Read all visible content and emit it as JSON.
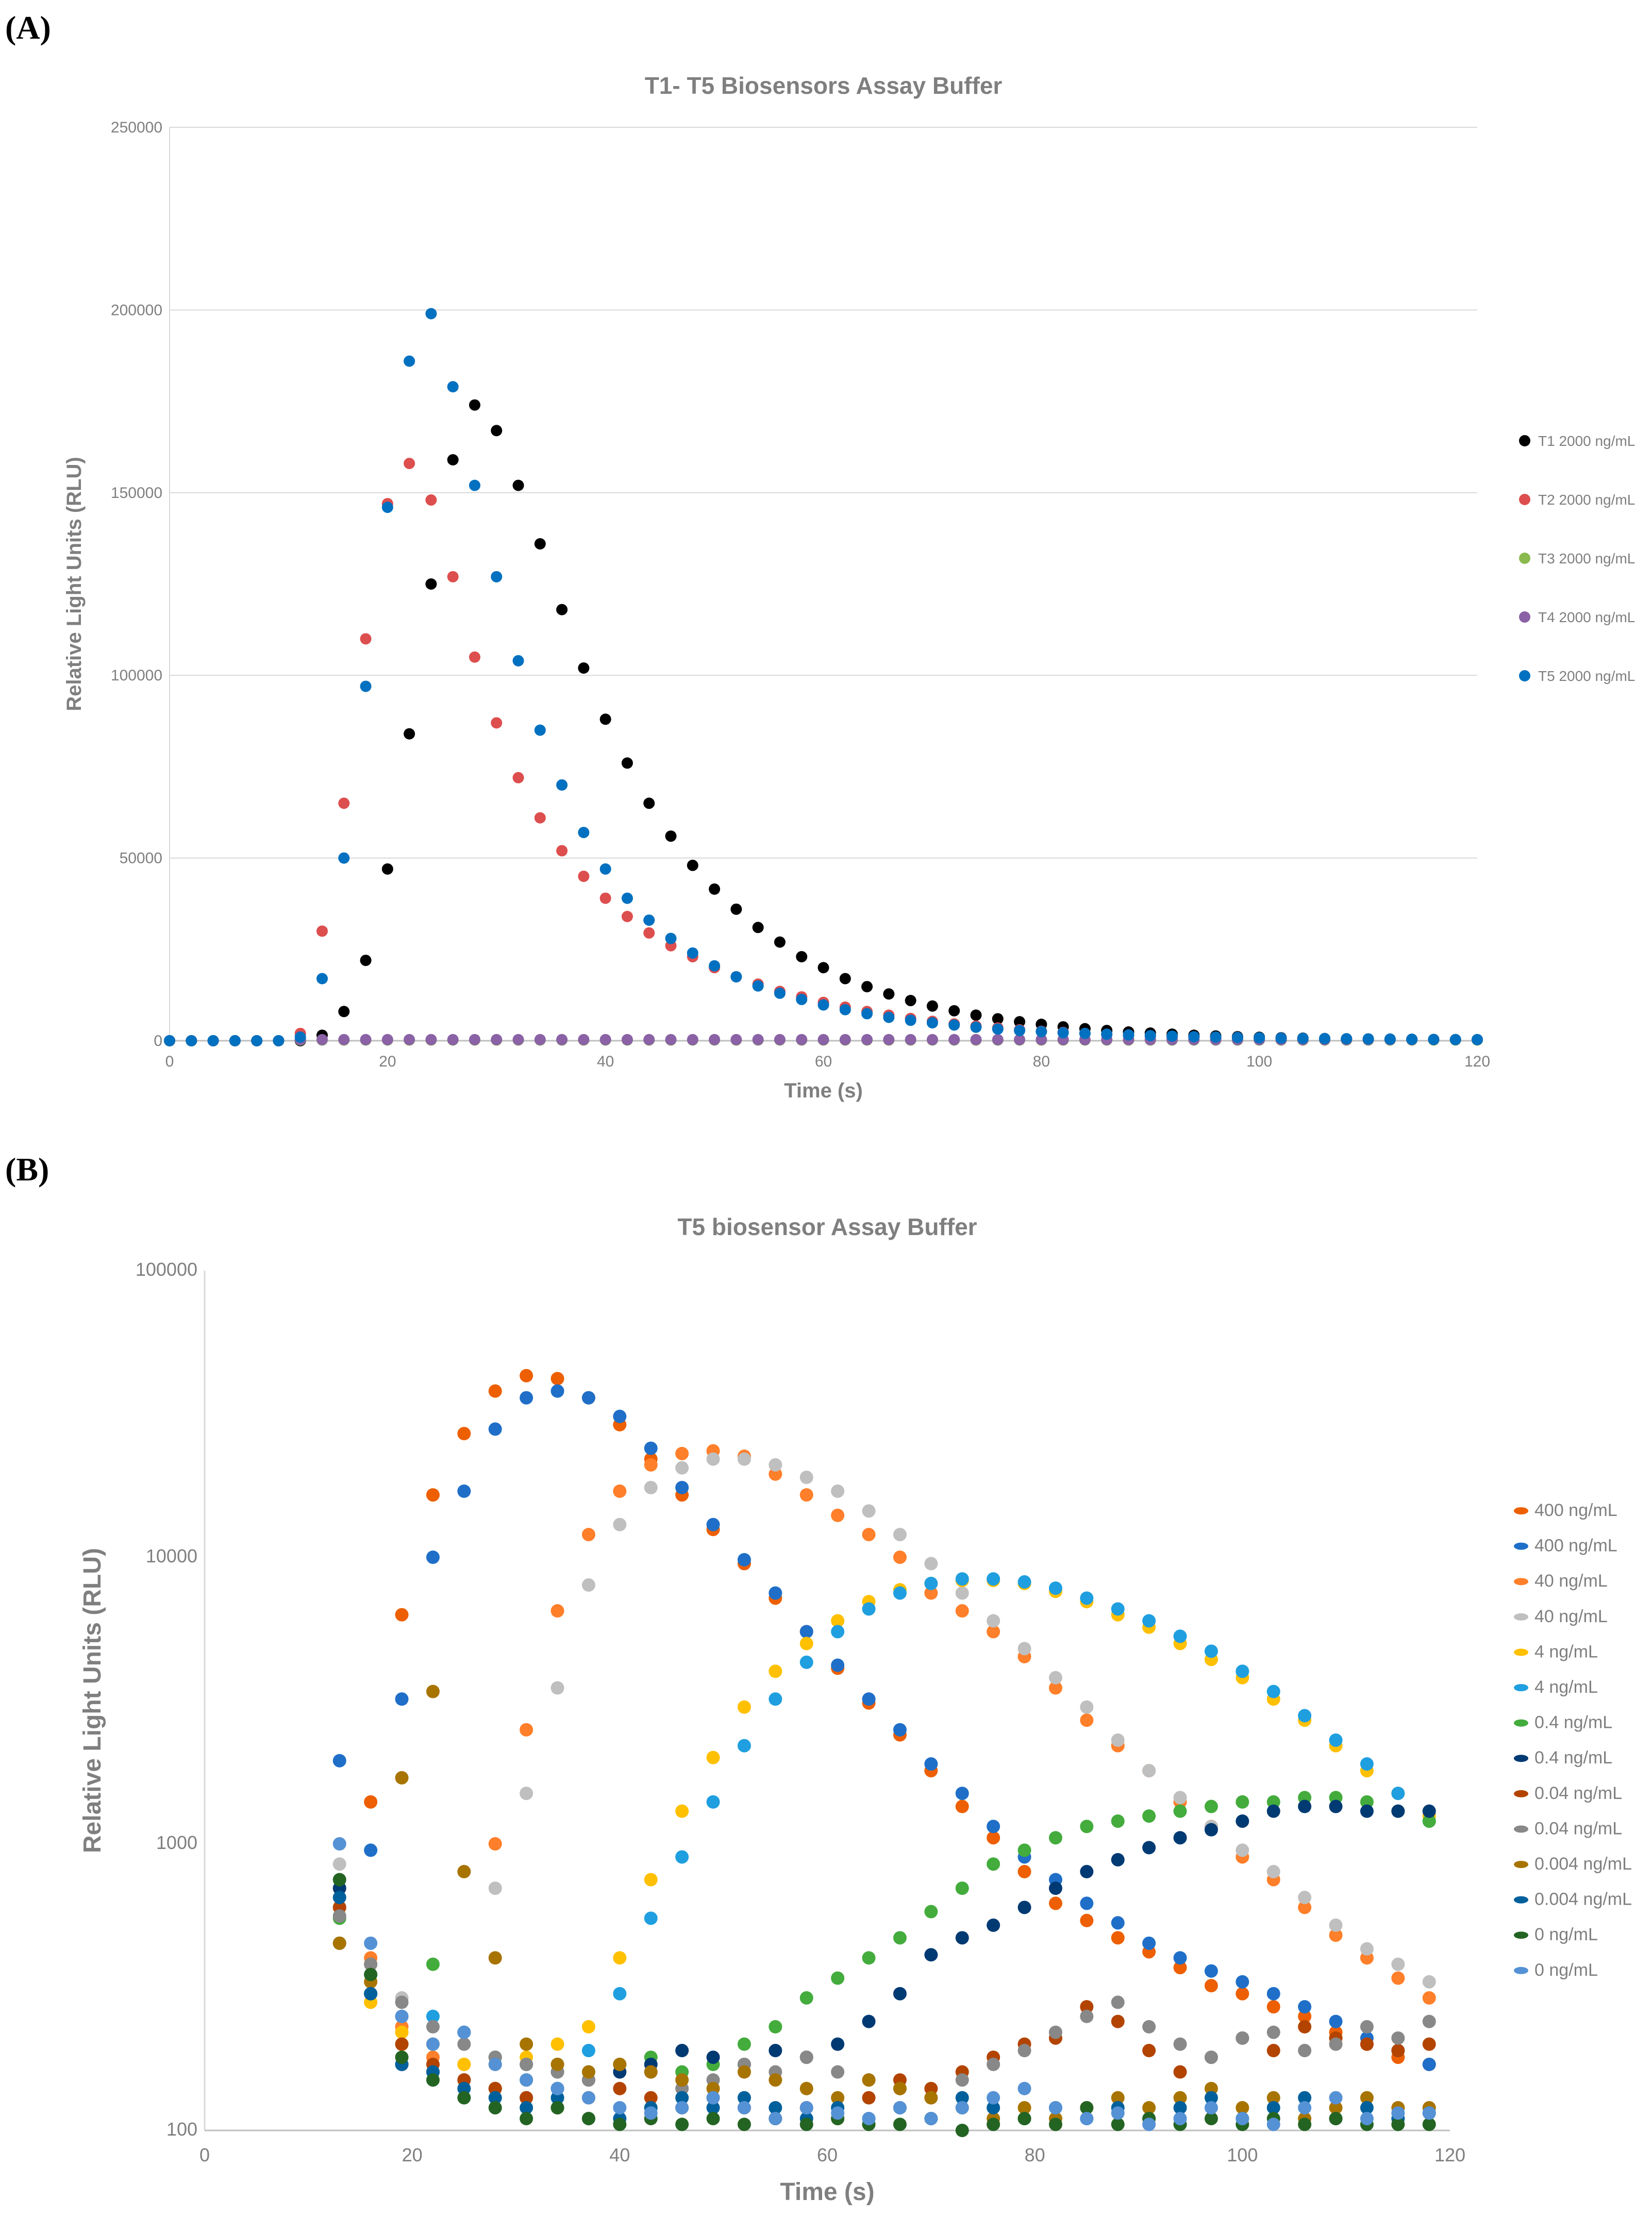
{
  "panels": {
    "a": "(A)",
    "b": "(B)"
  },
  "chart_data": [
    {
      "type": "scatter",
      "title": "T1- T5 Biosensors Assay Buffer",
      "xlabel": "Time (s)",
      "ylabel": "Relative Light Units (RLU)",
      "xlim": [
        0,
        120
      ],
      "ylim": [
        0,
        250000
      ],
      "xticks": [
        0,
        20,
        40,
        60,
        80,
        100,
        120
      ],
      "yticks": [
        0,
        50000,
        100000,
        150000,
        200000,
        250000
      ],
      "grid": "horizontal",
      "legend": "right",
      "yscale": "linear",
      "x": [
        0,
        2,
        4,
        6,
        8,
        10,
        12,
        14,
        16,
        18,
        20,
        22,
        24,
        26,
        28,
        30,
        32,
        34,
        36,
        38,
        40,
        42,
        44,
        46,
        48,
        50,
        52,
        54,
        56,
        58,
        60,
        62,
        64,
        66,
        68,
        70,
        72,
        74,
        76,
        78,
        80,
        82,
        84,
        86,
        88,
        90,
        92,
        94,
        96,
        98,
        100,
        102,
        104,
        106,
        108,
        110,
        112,
        114,
        116,
        118,
        120
      ],
      "series": [
        {
          "name": "T1 2000 ng/mL",
          "color": "#000000",
          "values": [
            0,
            0,
            0,
            0,
            0,
            0,
            0,
            1500,
            8000,
            22000,
            47000,
            84000,
            125000,
            159000,
            174000,
            167000,
            152000,
            136000,
            118000,
            102000,
            88000,
            76000,
            65000,
            56000,
            48000,
            41500,
            36000,
            31000,
            27000,
            23000,
            20000,
            17000,
            14800,
            12800,
            11000,
            9500,
            8200,
            7000,
            6000,
            5200,
            4500,
            3800,
            3300,
            2800,
            2400,
            2100,
            1800,
            1500,
            1300,
            1100,
            950,
            800,
            700,
            600,
            500,
            450,
            400,
            350,
            300,
            280,
            250
          ]
        },
        {
          "name": "T2 2000 ng/mL",
          "color": "#DD4E4E",
          "values": [
            0,
            0,
            0,
            0,
            0,
            0,
            2000,
            30000,
            65000,
            110000,
            147000,
            158000,
            148000,
            127000,
            105000,
            87000,
            72000,
            61000,
            52000,
            45000,
            39000,
            34000,
            29500,
            26000,
            23000,
            20000,
            17500,
            15500,
            13500,
            12000,
            10500,
            9200,
            8000,
            7000,
            6100,
            5300,
            4600,
            4000,
            3500,
            3000,
            2600,
            2300,
            2000,
            1700,
            1500,
            1300,
            1100,
            1000,
            900,
            800,
            700,
            650,
            600,
            550,
            500,
            450,
            420,
            400,
            350,
            320,
            300
          ]
        },
        {
          "name": "T3 2000 ng/mL",
          "color": "#8AB94E",
          "values": [
            0,
            0,
            0,
            0,
            0,
            0,
            200,
            200,
            200,
            200,
            200,
            200,
            200,
            200,
            200,
            200,
            200,
            200,
            200,
            200,
            200,
            200,
            200,
            200,
            200,
            200,
            200,
            200,
            200,
            200,
            200,
            200,
            200,
            200,
            200,
            200,
            200,
            200,
            200,
            200,
            200,
            200,
            200,
            200,
            200,
            200,
            200,
            200,
            200,
            200,
            200,
            200,
            200,
            200,
            200,
            200,
            200,
            200,
            200,
            200,
            200
          ]
        },
        {
          "name": "T4 2000 ng/mL",
          "color": "#8A62A5",
          "values": [
            0,
            0,
            0,
            0,
            0,
            0,
            300,
            300,
            300,
            300,
            300,
            300,
            300,
            300,
            300,
            300,
            300,
            300,
            300,
            300,
            300,
            300,
            300,
            300,
            300,
            300,
            300,
            300,
            300,
            300,
            300,
            300,
            300,
            300,
            300,
            300,
            300,
            300,
            300,
            300,
            300,
            300,
            300,
            300,
            300,
            300,
            300,
            300,
            300,
            300,
            300,
            300,
            300,
            300,
            300,
            300,
            300,
            300,
            300,
            300,
            300
          ]
        },
        {
          "name": "T5 2000 ng/mL",
          "color": "#0070C0",
          "values": [
            0,
            0,
            0,
            0,
            0,
            0,
            1000,
            17000,
            50000,
            97000,
            146000,
            186000,
            199000,
            179000,
            152000,
            127000,
            104000,
            85000,
            70000,
            57000,
            47000,
            39000,
            33000,
            28000,
            24000,
            20500,
            17500,
            15000,
            13000,
            11300,
            9800,
            8500,
            7400,
            6400,
            5600,
            4900,
            4300,
            3700,
            3200,
            2800,
            2500,
            2200,
            2000,
            1800,
            1600,
            1400,
            1250,
            1100,
            1000,
            900,
            800,
            700,
            650,
            600,
            550,
            500,
            450,
            400,
            350,
            320,
            300
          ]
        }
      ]
    },
    {
      "type": "scatter",
      "title": "T5 biosensor Assay Buffer",
      "xlabel": "Time (s)",
      "ylabel": "Relative Light Units (RLU)",
      "xlim": [
        0,
        120
      ],
      "ylim": [
        100,
        100000
      ],
      "xticks": [
        0,
        20,
        40,
        60,
        80,
        100,
        120
      ],
      "yticks": [
        100,
        1000,
        10000,
        100000
      ],
      "grid": "none",
      "legend": "right",
      "yscale": "log",
      "x": [
        13,
        16,
        19,
        22,
        25,
        28,
        31,
        34,
        37,
        40,
        43,
        46,
        49,
        52,
        55,
        58,
        61,
        64,
        67,
        70,
        73,
        76,
        79,
        82,
        85,
        88,
        91,
        94,
        97,
        100,
        103,
        106,
        109,
        112,
        115,
        118
      ],
      "series": [
        {
          "name": "400 ng/mL",
          "color": "#ED5F00",
          "values": [
            600,
            1400,
            6300,
            16500,
            27000,
            38000,
            43000,
            42000,
            36000,
            29000,
            22000,
            16500,
            12500,
            9500,
            7200,
            5500,
            4100,
            3100,
            2400,
            1800,
            1350,
            1050,
            800,
            620,
            540,
            470,
            420,
            370,
            320,
            300,
            270,
            250,
            220,
            200,
            180,
            170
          ]
        },
        {
          "name": "400 ng/mL",
          "color": "#1F6FC8",
          "values": [
            1950,
            950,
            3200,
            10000,
            17000,
            28000,
            36000,
            38000,
            36000,
            31000,
            24000,
            17500,
            13000,
            9800,
            7500,
            5500,
            4200,
            3200,
            2500,
            1900,
            1500,
            1150,
            900,
            750,
            620,
            530,
            450,
            400,
            360,
            330,
            300,
            270,
            240,
            210,
            190,
            170
          ]
        },
        {
          "name": "40 ng/mL",
          "color": "#FF7F2A",
          "values": [
            700,
            400,
            230,
            180,
            170,
            1000,
            2500,
            6500,
            12000,
            17000,
            21000,
            23000,
            23500,
            22500,
            19500,
            16500,
            14000,
            12000,
            10000,
            7500,
            6500,
            5500,
            4500,
            3500,
            2700,
            2200,
            1800,
            1400,
            1150,
            900,
            750,
            600,
            480,
            400,
            340,
            290
          ]
        },
        {
          "name": "40 ng/mL",
          "color": "#BFBFBF",
          "values": [
            850,
            300,
            290,
            200,
            220,
            700,
            1500,
            3500,
            8000,
            13000,
            17500,
            20500,
            22000,
            22000,
            21000,
            19000,
            17000,
            14500,
            12000,
            9500,
            7500,
            6000,
            4800,
            3800,
            3000,
            2300,
            1800,
            1450,
            1150,
            950,
            800,
            650,
            520,
            430,
            380,
            330
          ]
        },
        {
          "name": "4 ng/mL",
          "color": "#FFC000",
          "values": [
            450,
            280,
            220,
            200,
            170,
            170,
            180,
            200,
            230,
            400,
            750,
            1300,
            2000,
            3000,
            4000,
            5000,
            6000,
            7000,
            7700,
            8100,
            8300,
            8300,
            8100,
            7600,
            7000,
            6300,
            5700,
            5000,
            4400,
            3800,
            3200,
            2700,
            2200,
            1800,
            1500,
            1250
          ]
        },
        {
          "name": "4 ng/mL",
          "color": "#1F9FE0",
          "values": [
            450,
            350,
            250,
            250,
            220,
            180,
            170,
            160,
            190,
            300,
            550,
            900,
            1400,
            2200,
            3200,
            4300,
            5500,
            6600,
            7500,
            8100,
            8400,
            8400,
            8200,
            7800,
            7200,
            6600,
            6000,
            5300,
            4700,
            4000,
            3400,
            2800,
            2300,
            1900,
            1500,
            1200
          ]
        },
        {
          "name": "0.4 ng/mL",
          "color": "#43AC3C",
          "values": [
            550,
            300,
            200,
            380,
            220,
            180,
            150,
            170,
            160,
            170,
            180,
            160,
            170,
            200,
            230,
            290,
            340,
            400,
            470,
            580,
            700,
            850,
            950,
            1050,
            1150,
            1200,
            1250,
            1300,
            1350,
            1400,
            1400,
            1450,
            1450,
            1400,
            1300,
            1200
          ]
        },
        {
          "name": "0.4 ng/mL",
          "color": "#003A73",
          "values": [
            700,
            300,
            170,
            160,
            150,
            140,
            130,
            140,
            150,
            160,
            170,
            190,
            180,
            170,
            190,
            180,
            200,
            240,
            300,
            410,
            470,
            520,
            600,
            700,
            800,
            880,
            970,
            1050,
            1120,
            1200,
            1300,
            1350,
            1350,
            1300,
            1300,
            1300
          ]
        },
        {
          "name": "0.04 ng/mL",
          "color": "#B34400",
          "values": [
            600,
            380,
            200,
            170,
            150,
            140,
            130,
            120,
            130,
            140,
            130,
            120,
            130,
            120,
            110,
            120,
            110,
            130,
            150,
            140,
            160,
            180,
            200,
            210,
            270,
            240,
            190,
            160,
            180,
            210,
            190,
            230,
            210,
            200,
            190,
            200
          ]
        },
        {
          "name": "0.04 ng/mL",
          "color": "#888888",
          "values": [
            560,
            380,
            280,
            230,
            200,
            180,
            170,
            160,
            150,
            170,
            160,
            140,
            150,
            170,
            160,
            180,
            160,
            150,
            140,
            130,
            150,
            170,
            190,
            220,
            250,
            280,
            230,
            200,
            180,
            210,
            220,
            190,
            200,
            230,
            210,
            240
          ]
        },
        {
          "name": "0.004 ng/mL",
          "color": "#A87400",
          "values": [
            450,
            330,
            1700,
            3400,
            800,
            400,
            200,
            170,
            160,
            170,
            160,
            150,
            140,
            160,
            150,
            140,
            130,
            150,
            140,
            130,
            120,
            110,
            120,
            110,
            120,
            130,
            120,
            130,
            140,
            120,
            130,
            110,
            120,
            130,
            120,
            120
          ]
        },
        {
          "name": "0.004 ng/mL",
          "color": "#00609C",
          "values": [
            650,
            300,
            170,
            160,
            140,
            130,
            120,
            130,
            110,
            110,
            120,
            130,
            120,
            130,
            120,
            110,
            120,
            110,
            120,
            110,
            130,
            120,
            110,
            120,
            110,
            120,
            110,
            120,
            130,
            110,
            120,
            130,
            110,
            120,
            110,
            115
          ]
        },
        {
          "name": "0 ng/mL",
          "color": "#246423",
          "values": [
            750,
            350,
            180,
            150,
            130,
            120,
            110,
            120,
            110,
            105,
            110,
            105,
            110,
            105,
            110,
            105,
            110,
            105,
            105,
            110,
            100,
            105,
            110,
            105,
            120,
            105,
            110,
            105,
            110,
            105,
            110,
            105,
            110,
            105,
            105,
            105
          ]
        },
        {
          "name": "0 ng/mL",
          "color": "#5591D5",
          "values": [
            1000,
            450,
            250,
            200,
            220,
            170,
            150,
            140,
            130,
            120,
            115,
            120,
            130,
            120,
            110,
            120,
            115,
            110,
            120,
            110,
            120,
            130,
            140,
            120,
            110,
            115,
            105,
            110,
            120,
            110,
            105,
            120,
            130,
            110,
            115,
            115
          ]
        }
      ]
    }
  ]
}
